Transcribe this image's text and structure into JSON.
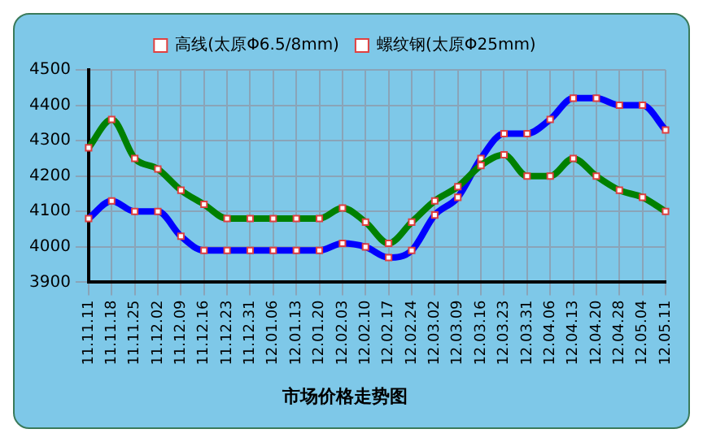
{
  "chart_data": {
    "type": "line",
    "title": "市场价格走势图",
    "categories": [
      "11.11.11",
      "11.11.18",
      "11.11.25",
      "11.12.02",
      "11.12.09",
      "11.12.16",
      "11.12.23",
      "11.12.31",
      "12.01.06",
      "12.01.13",
      "12.01.20",
      "12.02.03",
      "12.02.10",
      "12.02.17",
      "12.02.24",
      "12.03.02",
      "12.03.09",
      "12.03.16",
      "12.03.23",
      "12.03.31",
      "12.04.06",
      "12.04.13",
      "12.04.20",
      "12.04.28",
      "12.05.04",
      "12.05.11"
    ],
    "series": [
      {
        "name": "高线(太原Φ6.5/8mm)",
        "color": "#008000",
        "values": [
          4280,
          4360,
          4250,
          4220,
          4160,
          4120,
          4080,
          4080,
          4080,
          4080,
          4080,
          4110,
          4070,
          4010,
          4070,
          4130,
          4170,
          4230,
          4260,
          4200,
          4200,
          4250,
          4200,
          4160,
          4140,
          4100
        ]
      },
      {
        "name": "螺纹钢(太原Φ25mm)",
        "color": "#0000ff",
        "values": [
          4080,
          4130,
          4100,
          4100,
          4030,
          3990,
          3990,
          3990,
          3990,
          3990,
          3990,
          4010,
          4000,
          3970,
          3990,
          4090,
          4140,
          4250,
          4320,
          4320,
          4360,
          4420,
          4420,
          4400,
          4400,
          4330
        ]
      }
    ],
    "ylim": [
      3900,
      4500
    ],
    "yticks": [
      3900,
      4000,
      4100,
      4200,
      4300,
      4400,
      4500
    ],
    "grid": true,
    "legend": "top",
    "marker": "square",
    "line_style": "solid"
  }
}
